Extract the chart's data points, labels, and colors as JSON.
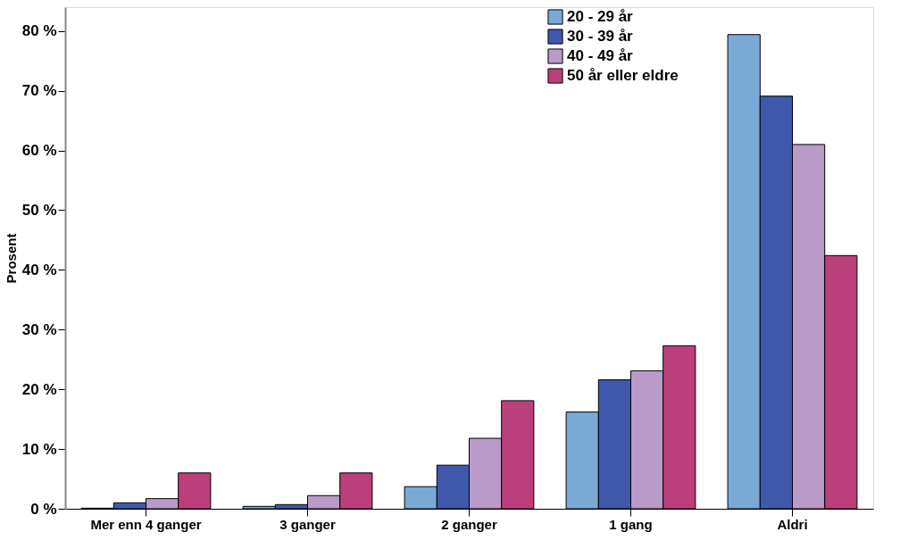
{
  "chart_data": {
    "type": "bar",
    "ylabel": "Prosent",
    "categories": [
      "Mer enn 4 ganger",
      "3 ganger",
      "2 ganger",
      "1 gang",
      "Aldri"
    ],
    "series": [
      {
        "name": "20 - 29 år",
        "color": "#7ba9d6",
        "values": [
          0.1,
          0.4,
          3.7,
          16.2,
          79.4
        ]
      },
      {
        "name": "30 - 39 år",
        "color": "#3f58ab",
        "values": [
          1.0,
          0.7,
          7.3,
          21.6,
          69.1
        ]
      },
      {
        "name": "40 - 49 år",
        "color": "#b99ac8",
        "values": [
          1.7,
          2.2,
          11.8,
          23.1,
          61.0
        ]
      },
      {
        "name": "50 år eller eldre",
        "color": "#bb3f7b",
        "values": [
          6.0,
          6.0,
          18.1,
          27.3,
          42.4
        ]
      }
    ],
    "ylim": [
      0,
      84
    ],
    "yticks": [
      {
        "value": 0,
        "label": "0 %"
      },
      {
        "value": 10,
        "label": "10 %"
      },
      {
        "value": 20,
        "label": "20 %"
      },
      {
        "value": 30,
        "label": "30 %"
      },
      {
        "value": 40,
        "label": "40 %"
      },
      {
        "value": 50,
        "label": "50 %"
      },
      {
        "value": 60,
        "label": "60 %"
      },
      {
        "value": 70,
        "label": "70 %"
      },
      {
        "value": 80,
        "label": "80 %"
      }
    ],
    "grid": false,
    "legend": "top right"
  }
}
